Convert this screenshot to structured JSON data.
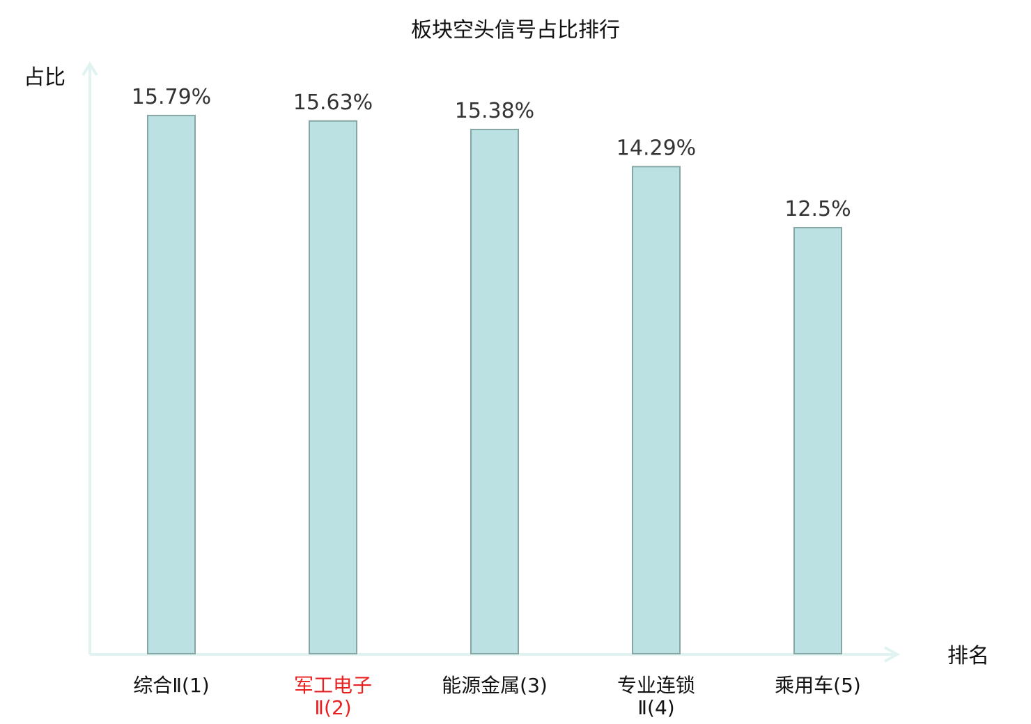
{
  "chart_data": {
    "type": "bar",
    "title": "板块空头信号占比排行",
    "ylabel": "占比",
    "xlabel": "排名",
    "ylim": [
      0,
      17.3
    ],
    "grid": false,
    "categories": [
      [
        "综合Ⅱ(1)"
      ],
      [
        "军工电子",
        "Ⅱ(2)"
      ],
      [
        "能源金属(3)"
      ],
      [
        "专业连锁",
        "Ⅱ(4)"
      ],
      [
        "乘用车(5)"
      ]
    ],
    "values": [
      15.79,
      15.63,
      15.38,
      14.29,
      12.5
    ],
    "value_labels": [
      "15.79%",
      "15.63%",
      "15.38%",
      "14.29%",
      "12.5%"
    ],
    "highlight_index": 1,
    "colors": {
      "bar_fill": "#bce1e3",
      "bar_stroke": "#86a5a5",
      "axis": "#e0f3f1",
      "highlight_text": "#e8201f",
      "text": "#111111"
    }
  }
}
